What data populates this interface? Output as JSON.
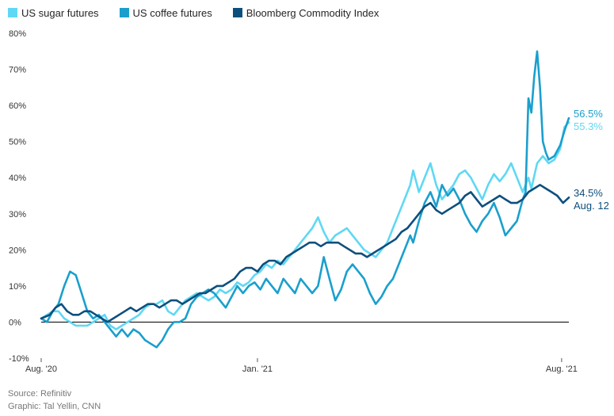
{
  "legend": {
    "sugar": "US sugar futures",
    "coffee": "US coffee futures",
    "bcom": "Bloomberg Commodity Index"
  },
  "colors": {
    "sugar": "#5fd8f4",
    "coffee": "#1a9fcd",
    "bcom": "#0d4f7c",
    "axis": "#000000",
    "tick_text": "#333333"
  },
  "end_labels": {
    "coffee": "56.5%",
    "sugar": "55.3%",
    "bcom": "34.5%",
    "date": "Aug. 12"
  },
  "footer": {
    "source": "Source: Refinitiv",
    "graphic": "Graphic: Tal Yellin, CNN"
  },
  "chart_data": {
    "type": "line",
    "xlabel": "",
    "ylabel": "",
    "x_ticks": [
      "Aug. '20",
      "Jan. '21",
      "Aug. '21"
    ],
    "x_tick_positions": [
      0,
      150,
      361
    ],
    "y_ticks": [
      "-10%",
      "0%",
      "10%",
      "20%",
      "30%",
      "40%",
      "50%",
      "60%",
      "70%",
      "80%"
    ],
    "ylim": [
      -10,
      80
    ],
    "xlim": [
      0,
      366
    ],
    "grid": false,
    "legend_position": "top-left",
    "series": [
      {
        "name": "US sugar futures",
        "key": "sugar",
        "points": [
          [
            0,
            1
          ],
          [
            4,
            2
          ],
          [
            8,
            3
          ],
          [
            12,
            3
          ],
          [
            16,
            1
          ],
          [
            20,
            0
          ],
          [
            24,
            -1
          ],
          [
            28,
            -1
          ],
          [
            32,
            -1
          ],
          [
            36,
            0
          ],
          [
            40,
            1
          ],
          [
            44,
            2
          ],
          [
            48,
            -1
          ],
          [
            52,
            -2
          ],
          [
            56,
            -1
          ],
          [
            60,
            0
          ],
          [
            64,
            1
          ],
          [
            68,
            2
          ],
          [
            72,
            4
          ],
          [
            76,
            5
          ],
          [
            80,
            5
          ],
          [
            84,
            6
          ],
          [
            88,
            3
          ],
          [
            92,
            2
          ],
          [
            96,
            4
          ],
          [
            100,
            6
          ],
          [
            104,
            7
          ],
          [
            108,
            8
          ],
          [
            112,
            7
          ],
          [
            116,
            6
          ],
          [
            120,
            7
          ],
          [
            124,
            9
          ],
          [
            128,
            8
          ],
          [
            132,
            9
          ],
          [
            136,
            11
          ],
          [
            140,
            10
          ],
          [
            144,
            11
          ],
          [
            148,
            13
          ],
          [
            152,
            14
          ],
          [
            156,
            16
          ],
          [
            160,
            15
          ],
          [
            164,
            17
          ],
          [
            168,
            16
          ],
          [
            172,
            18
          ],
          [
            176,
            20
          ],
          [
            180,
            22
          ],
          [
            184,
            24
          ],
          [
            188,
            26
          ],
          [
            192,
            29
          ],
          [
            196,
            25
          ],
          [
            200,
            22
          ],
          [
            204,
            24
          ],
          [
            208,
            25
          ],
          [
            212,
            26
          ],
          [
            216,
            24
          ],
          [
            220,
            22
          ],
          [
            224,
            20
          ],
          [
            228,
            19
          ],
          [
            232,
            18
          ],
          [
            236,
            20
          ],
          [
            240,
            22
          ],
          [
            244,
            26
          ],
          [
            248,
            30
          ],
          [
            252,
            34
          ],
          [
            256,
            38
          ],
          [
            258,
            42
          ],
          [
            262,
            36
          ],
          [
            266,
            40
          ],
          [
            270,
            44
          ],
          [
            274,
            38
          ],
          [
            278,
            34
          ],
          [
            282,
            36
          ],
          [
            286,
            38
          ],
          [
            290,
            41
          ],
          [
            294,
            42
          ],
          [
            298,
            40
          ],
          [
            302,
            37
          ],
          [
            306,
            34
          ],
          [
            310,
            38
          ],
          [
            314,
            41
          ],
          [
            318,
            39
          ],
          [
            322,
            41
          ],
          [
            326,
            44
          ],
          [
            330,
            40
          ],
          [
            334,
            36
          ],
          [
            338,
            40
          ],
          [
            340,
            37
          ],
          [
            344,
            44
          ],
          [
            348,
            46
          ],
          [
            352,
            44
          ],
          [
            356,
            45
          ],
          [
            360,
            48
          ],
          [
            363,
            54
          ],
          [
            366,
            55.3
          ]
        ]
      },
      {
        "name": "US coffee futures",
        "key": "coffee",
        "points": [
          [
            0,
            1
          ],
          [
            4,
            0
          ],
          [
            8,
            3
          ],
          [
            12,
            5
          ],
          [
            16,
            10
          ],
          [
            20,
            14
          ],
          [
            24,
            13
          ],
          [
            28,
            8
          ],
          [
            32,
            3
          ],
          [
            36,
            1
          ],
          [
            40,
            2
          ],
          [
            44,
            0
          ],
          [
            48,
            -2
          ],
          [
            52,
            -4
          ],
          [
            56,
            -2
          ],
          [
            60,
            -4
          ],
          [
            64,
            -2
          ],
          [
            68,
            -3
          ],
          [
            72,
            -5
          ],
          [
            76,
            -6
          ],
          [
            80,
            -7
          ],
          [
            84,
            -5
          ],
          [
            88,
            -2
          ],
          [
            92,
            0
          ],
          [
            96,
            0
          ],
          [
            100,
            1
          ],
          [
            104,
            5
          ],
          [
            108,
            7
          ],
          [
            112,
            8
          ],
          [
            116,
            9
          ],
          [
            120,
            8
          ],
          [
            124,
            6
          ],
          [
            128,
            4
          ],
          [
            132,
            7
          ],
          [
            136,
            10
          ],
          [
            140,
            8
          ],
          [
            144,
            10
          ],
          [
            148,
            11
          ],
          [
            152,
            9
          ],
          [
            156,
            12
          ],
          [
            160,
            10
          ],
          [
            164,
            8
          ],
          [
            168,
            12
          ],
          [
            172,
            10
          ],
          [
            176,
            8
          ],
          [
            180,
            12
          ],
          [
            184,
            10
          ],
          [
            188,
            8
          ],
          [
            192,
            10
          ],
          [
            196,
            18
          ],
          [
            200,
            12
          ],
          [
            204,
            6
          ],
          [
            208,
            9
          ],
          [
            212,
            14
          ],
          [
            216,
            16
          ],
          [
            220,
            14
          ],
          [
            224,
            12
          ],
          [
            228,
            8
          ],
          [
            232,
            5
          ],
          [
            236,
            7
          ],
          [
            240,
            10
          ],
          [
            244,
            12
          ],
          [
            248,
            16
          ],
          [
            252,
            20
          ],
          [
            256,
            24
          ],
          [
            258,
            22
          ],
          [
            262,
            28
          ],
          [
            266,
            33
          ],
          [
            270,
            36
          ],
          [
            274,
            32
          ],
          [
            278,
            38
          ],
          [
            282,
            35
          ],
          [
            286,
            37
          ],
          [
            290,
            34
          ],
          [
            294,
            30
          ],
          [
            298,
            27
          ],
          [
            302,
            25
          ],
          [
            306,
            28
          ],
          [
            310,
            30
          ],
          [
            314,
            33
          ],
          [
            318,
            29
          ],
          [
            322,
            24
          ],
          [
            326,
            26
          ],
          [
            330,
            28
          ],
          [
            334,
            34
          ],
          [
            336,
            36
          ],
          [
            338,
            62
          ],
          [
            340,
            58
          ],
          [
            342,
            68
          ],
          [
            344,
            75
          ],
          [
            346,
            65
          ],
          [
            348,
            50
          ],
          [
            350,
            47
          ],
          [
            352,
            45
          ],
          [
            356,
            46
          ],
          [
            360,
            49
          ],
          [
            363,
            53
          ],
          [
            366,
            56.5
          ]
        ]
      },
      {
        "name": "Bloomberg Commodity Index",
        "key": "bcom",
        "points": [
          [
            0,
            1
          ],
          [
            6,
            2
          ],
          [
            10,
            4
          ],
          [
            14,
            5
          ],
          [
            18,
            3
          ],
          [
            22,
            2
          ],
          [
            26,
            2
          ],
          [
            30,
            3
          ],
          [
            34,
            3
          ],
          [
            38,
            2
          ],
          [
            42,
            1
          ],
          [
            46,
            0
          ],
          [
            50,
            1
          ],
          [
            54,
            2
          ],
          [
            58,
            3
          ],
          [
            62,
            4
          ],
          [
            66,
            3
          ],
          [
            70,
            4
          ],
          [
            74,
            5
          ],
          [
            78,
            5
          ],
          [
            82,
            4
          ],
          [
            86,
            5
          ],
          [
            90,
            6
          ],
          [
            94,
            6
          ],
          [
            98,
            5
          ],
          [
            102,
            6
          ],
          [
            106,
            7
          ],
          [
            110,
            8
          ],
          [
            114,
            8
          ],
          [
            118,
            9
          ],
          [
            122,
            10
          ],
          [
            126,
            10
          ],
          [
            130,
            11
          ],
          [
            134,
            12
          ],
          [
            138,
            14
          ],
          [
            142,
            15
          ],
          [
            146,
            15
          ],
          [
            150,
            14
          ],
          [
            154,
            16
          ],
          [
            158,
            17
          ],
          [
            162,
            17
          ],
          [
            166,
            16
          ],
          [
            170,
            18
          ],
          [
            174,
            19
          ],
          [
            178,
            20
          ],
          [
            182,
            21
          ],
          [
            186,
            22
          ],
          [
            190,
            22
          ],
          [
            194,
            21
          ],
          [
            198,
            22
          ],
          [
            202,
            22
          ],
          [
            206,
            22
          ],
          [
            210,
            21
          ],
          [
            214,
            20
          ],
          [
            218,
            19
          ],
          [
            222,
            19
          ],
          [
            226,
            18
          ],
          [
            230,
            19
          ],
          [
            234,
            20
          ],
          [
            238,
            21
          ],
          [
            242,
            22
          ],
          [
            246,
            23
          ],
          [
            250,
            25
          ],
          [
            254,
            26
          ],
          [
            258,
            28
          ],
          [
            262,
            30
          ],
          [
            266,
            32
          ],
          [
            270,
            33
          ],
          [
            274,
            31
          ],
          [
            278,
            30
          ],
          [
            282,
            31
          ],
          [
            286,
            32
          ],
          [
            290,
            33
          ],
          [
            294,
            35
          ],
          [
            298,
            36
          ],
          [
            302,
            34
          ],
          [
            306,
            32
          ],
          [
            310,
            33
          ],
          [
            314,
            34
          ],
          [
            318,
            35
          ],
          [
            322,
            34
          ],
          [
            326,
            33
          ],
          [
            330,
            33
          ],
          [
            334,
            34
          ],
          [
            338,
            36
          ],
          [
            342,
            37
          ],
          [
            346,
            38
          ],
          [
            350,
            37
          ],
          [
            354,
            36
          ],
          [
            358,
            35
          ],
          [
            362,
            33
          ],
          [
            366,
            34.5
          ]
        ]
      }
    ]
  }
}
